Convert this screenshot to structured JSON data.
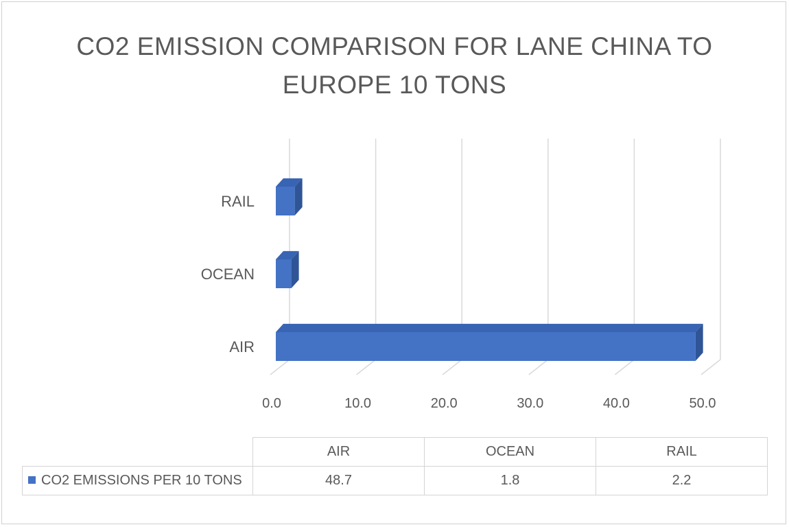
{
  "chart_data": {
    "type": "bar",
    "orientation": "horizontal",
    "style": "3d",
    "title_lines": [
      "CO2 EMISSION COMPARISON FOR LANE CHINA TO",
      "EUROPE 10 TONS"
    ],
    "categories": [
      "AIR",
      "OCEAN",
      "RAIL"
    ],
    "series": [
      {
        "name": "CO2 EMISSIONS PER 10 TONS",
        "values": [
          48.7,
          1.8,
          2.2
        ],
        "color": "#4472c4"
      }
    ],
    "xlim": [
      0,
      50
    ],
    "xticks": [
      "0.0",
      "10.0",
      "20.0",
      "30.0",
      "40.0",
      "50.0"
    ],
    "grid": true,
    "data_table": true
  }
}
